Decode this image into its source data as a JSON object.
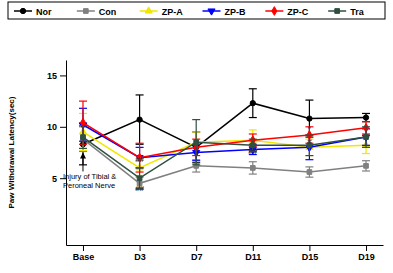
{
  "chart_data": {
    "type": "line",
    "y_label": "Paw Withdrawal Latency(sec)",
    "categories": [
      "Base",
      "D3",
      "D7",
      "D11",
      "D15",
      "D19"
    ],
    "ylim": [
      -1.5,
      16.5
    ],
    "yticks": [
      5,
      10,
      15
    ],
    "legend": "top",
    "series": [
      {
        "name": "Nor",
        "color": "#000000",
        "marker": "circle",
        "values": [
          8.3,
          10.7,
          8.0,
          12.3,
          10.8,
          10.9
        ],
        "errors": [
          2.0,
          2.4,
          1.5,
          1.4,
          1.8,
          0.4
        ]
      },
      {
        "name": "Con",
        "color": "#808080",
        "marker": "square",
        "values": [
          8.8,
          4.5,
          6.2,
          6.0,
          5.6,
          6.2
        ],
        "errors": [
          1.2,
          0.6,
          0.6,
          0.6,
          0.5,
          0.5
        ]
      },
      {
        "name": "ZP-A",
        "color": "#f2e600",
        "marker": "triangle",
        "values": [
          9.5,
          6.0,
          8.5,
          8.7,
          8.0,
          8.2
        ],
        "errors": [
          1.8,
          0.8,
          1.0,
          1.0,
          0.8,
          0.8
        ]
      },
      {
        "name": "ZP-B",
        "color": "#0000ff",
        "marker": "triangle-down",
        "values": [
          10.2,
          7.0,
          7.5,
          7.8,
          8.0,
          9.0
        ],
        "errors": [
          1.6,
          1.0,
          0.8,
          0.5,
          1.2,
          0.8
        ]
      },
      {
        "name": "ZP-C",
        "color": "#ff0000",
        "marker": "diamond",
        "values": [
          10.4,
          7.0,
          8.0,
          8.7,
          9.2,
          9.9
        ],
        "errors": [
          2.1,
          1.4,
          0.8,
          0.6,
          0.8,
          0.6
        ]
      },
      {
        "name": "Tra",
        "color": "#2f4f3f",
        "marker": "square",
        "values": [
          9.0,
          5.0,
          8.5,
          8.2,
          8.2,
          9.0
        ],
        "errors": [
          1.1,
          1.0,
          2.2,
          0.6,
          1.0,
          1.0
        ]
      }
    ],
    "annotations": [
      {
        "text": [
          "Injury of Tibial &",
          "Peroneal Nerve"
        ],
        "category": "Base",
        "y": 7.8
      },
      {
        "text": [
          "##"
        ],
        "category": "D3",
        "y": 3.8
      },
      {
        "text": [
          "##"
        ],
        "category": "D3",
        "y": 6.6
      },
      {
        "text": [
          "##"
        ],
        "category": "D11",
        "y": 7.4
      },
      {
        "text": [
          "#"
        ],
        "category": "D15",
        "y": 8.3
      },
      {
        "text": [
          "*"
        ],
        "category": "D15",
        "y": 9.6
      }
    ]
  }
}
